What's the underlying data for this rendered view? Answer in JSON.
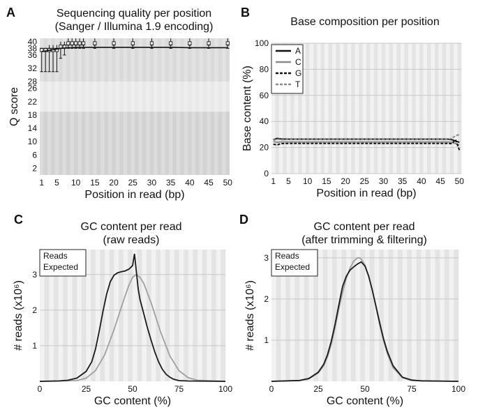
{
  "colors": {
    "stripe_light": "#f2f2f2",
    "stripe_dark": "#e4e4e4",
    "band_high": "#dadada",
    "band_mid": "#e9e9e9",
    "band_low": "#d2d2d2",
    "gridline": "#c8c8c8",
    "reads": "#1a1a1a",
    "expected": "#a0a0a0"
  },
  "panels": {
    "A": {
      "letter": "A",
      "title_line1": "Sequencing quality per position",
      "title_line2": "(Sanger / Illumina 1.9 encoding)"
    },
    "B": {
      "letter": "B",
      "title_line1": "Base composition per position",
      "title_line2": ""
    },
    "C": {
      "letter": "C",
      "title_line1": "GC content per read",
      "title_line2": "(raw reads)"
    },
    "D": {
      "letter": "D",
      "title_line1": "GC content per read",
      "title_line2": "(after trimming & filtering)"
    }
  },
  "chart_data": [
    {
      "id": "A",
      "type": "line",
      "title": "Sequencing quality per position (Sanger / Illumina 1.9 encoding)",
      "xlabel": "Position in read (bp)",
      "ylabel": "Q score",
      "xlim": [
        0.5,
        50.5
      ],
      "ylim": [
        0,
        41
      ],
      "xticks": [
        1,
        5,
        10,
        15,
        20,
        25,
        30,
        35,
        40,
        45,
        50
      ],
      "yticks": [
        2,
        6,
        10,
        14,
        18,
        22,
        26,
        28,
        32,
        36,
        38,
        40
      ],
      "quality_bands": [
        {
          "from": 28,
          "to": 41,
          "shade": "high"
        },
        {
          "from": 19,
          "to": 28,
          "shade": "mid"
        },
        {
          "from": 0,
          "to": 19,
          "shade": "low"
        }
      ],
      "positions": [
        1,
        2,
        3,
        4,
        5,
        6,
        7,
        8,
        9,
        10,
        11,
        12,
        15,
        20,
        25,
        30,
        35,
        40,
        45,
        50
      ],
      "mean": [
        37.0,
        37.2,
        37.4,
        37.6,
        37.8,
        38.0,
        38.1,
        38.2,
        38.2,
        38.3,
        38.3,
        38.3,
        38.3,
        38.3,
        38.3,
        38.3,
        38.3,
        38.2,
        38.2,
        38.2
      ],
      "median": [
        38,
        38,
        38,
        38,
        38,
        38,
        39,
        39,
        39,
        39,
        39,
        39,
        39,
        39,
        39,
        39,
        39,
        39,
        39,
        39
      ],
      "q25": [
        37,
        37,
        37,
        37,
        37,
        38,
        38,
        39,
        39,
        39,
        39,
        39,
        39,
        39,
        39,
        39,
        39,
        39,
        39,
        39
      ],
      "q75": [
        38,
        38,
        38,
        38,
        38,
        39,
        39,
        40,
        40,
        40,
        40,
        40,
        40,
        40,
        40,
        40,
        40,
        40,
        40,
        40
      ],
      "p10": [
        31,
        31,
        31,
        31,
        31,
        35,
        36,
        38,
        38,
        38,
        38,
        38,
        38,
        38,
        38,
        38,
        38,
        38,
        38,
        38
      ],
      "p90": [
        38,
        38,
        39,
        39,
        39,
        40,
        40,
        41,
        41,
        41,
        41,
        41,
        41,
        41,
        41,
        41,
        41,
        41,
        41,
        41
      ]
    },
    {
      "id": "B",
      "type": "line",
      "title": "Base composition per position",
      "xlabel": "Position in read (bp)",
      "ylabel": "Base content (%)",
      "xlim": [
        0.5,
        50.5
      ],
      "ylim": [
        0,
        100
      ],
      "xticks": [
        1,
        5,
        10,
        15,
        20,
        25,
        30,
        35,
        40,
        45,
        50
      ],
      "yticks": [
        0,
        20,
        40,
        60,
        80,
        100
      ],
      "legend_position": "top-left",
      "x": [
        1,
        2,
        3,
        5,
        10,
        20,
        30,
        40,
        47,
        48,
        49,
        50
      ],
      "series": [
        {
          "name": "A",
          "style": "solid",
          "values": [
            26.0,
            27.0,
            26.5,
            26.4,
            26.4,
            26.4,
            26.4,
            26.4,
            26.4,
            26.0,
            25.0,
            24.0
          ]
        },
        {
          "name": "C",
          "style": "solid-gray",
          "values": [
            24.5,
            24.0,
            24.3,
            24.3,
            24.3,
            24.3,
            24.3,
            24.3,
            24.3,
            24.0,
            23.0,
            22.0
          ]
        },
        {
          "name": "G",
          "style": "dashed",
          "values": [
            22.5,
            22.0,
            23.0,
            23.1,
            23.1,
            23.1,
            23.1,
            23.1,
            23.1,
            23.0,
            26.0,
            18.0
          ]
        },
        {
          "name": "T",
          "style": "dashed-gray",
          "values": [
            25.5,
            26.5,
            26.0,
            26.2,
            26.2,
            26.2,
            26.2,
            26.2,
            26.2,
            27.0,
            29.0,
            30.0
          ]
        }
      ]
    },
    {
      "id": "C",
      "type": "line",
      "title": "GC content per read (raw reads)",
      "xlabel": "GC content (%)",
      "ylabel": "# reads (x10⁶)",
      "xlim": [
        0,
        100
      ],
      "ylim": [
        0,
        3.7
      ],
      "xticks": [
        0,
        25,
        50,
        75,
        100
      ],
      "yticks": [
        1,
        2,
        3
      ],
      "legend_position": "top-left",
      "series": [
        {
          "name": "Reads",
          "x": [
            0,
            10,
            15,
            20,
            25,
            28,
            30,
            32,
            34,
            36,
            38,
            40,
            42,
            44,
            46,
            48,
            50,
            51,
            52,
            53,
            54,
            56,
            58,
            60,
            62,
            64,
            66,
            68,
            70,
            72,
            75,
            80,
            100
          ],
          "values": [
            0,
            0.01,
            0.03,
            0.09,
            0.28,
            0.55,
            0.9,
            1.4,
            1.95,
            2.45,
            2.8,
            2.98,
            3.05,
            3.08,
            3.1,
            3.15,
            3.25,
            3.58,
            3.1,
            2.6,
            2.3,
            1.9,
            1.5,
            1.15,
            0.82,
            0.55,
            0.34,
            0.2,
            0.12,
            0.06,
            0.02,
            0.01,
            0
          ]
        },
        {
          "name": "Expected",
          "x": [
            0,
            20,
            25,
            30,
            35,
            40,
            45,
            48,
            50,
            52,
            54,
            56,
            60,
            65,
            70,
            75,
            80,
            85,
            100
          ],
          "values": [
            0,
            0.02,
            0.09,
            0.3,
            0.75,
            1.45,
            2.25,
            2.7,
            2.92,
            3.0,
            2.92,
            2.75,
            2.2,
            1.4,
            0.72,
            0.3,
            0.1,
            0.03,
            0
          ]
        }
      ]
    },
    {
      "id": "D",
      "type": "line",
      "title": "GC content per read (after trimming & filtering)",
      "xlabel": "GC content (%)",
      "ylabel": "# reads (x10⁶)",
      "xlim": [
        0,
        100
      ],
      "ylim": [
        0,
        3.2
      ],
      "xticks": [
        0,
        25,
        50,
        75,
        100
      ],
      "yticks": [
        1,
        2,
        3
      ],
      "legend_position": "top-left",
      "series": [
        {
          "name": "Reads",
          "x": [
            0,
            15,
            20,
            25,
            28,
            30,
            32,
            34,
            36,
            38,
            40,
            42,
            44,
            46,
            48,
            50,
            52,
            54,
            56,
            58,
            60,
            62,
            65,
            70,
            75,
            80,
            100
          ],
          "values": [
            0,
            0.02,
            0.07,
            0.22,
            0.42,
            0.65,
            0.98,
            1.38,
            1.85,
            2.3,
            2.55,
            2.7,
            2.78,
            2.85,
            2.9,
            2.8,
            2.55,
            2.2,
            1.8,
            1.4,
            1.02,
            0.72,
            0.38,
            0.1,
            0.03,
            0.01,
            0
          ]
        },
        {
          "name": "Expected",
          "x": [
            0,
            15,
            20,
            25,
            28,
            30,
            32,
            34,
            36,
            38,
            40,
            42,
            44,
            46,
            47,
            48,
            50,
            52,
            54,
            56,
            58,
            60,
            62,
            65,
            70,
            75,
            100
          ],
          "values": [
            0,
            0.02,
            0.06,
            0.2,
            0.38,
            0.6,
            0.9,
            1.3,
            1.75,
            2.15,
            2.5,
            2.75,
            2.92,
            3.0,
            3.0,
            2.97,
            2.82,
            2.55,
            2.2,
            1.78,
            1.35,
            0.98,
            0.66,
            0.33,
            0.09,
            0.02,
            0
          ]
        }
      ]
    }
  ]
}
